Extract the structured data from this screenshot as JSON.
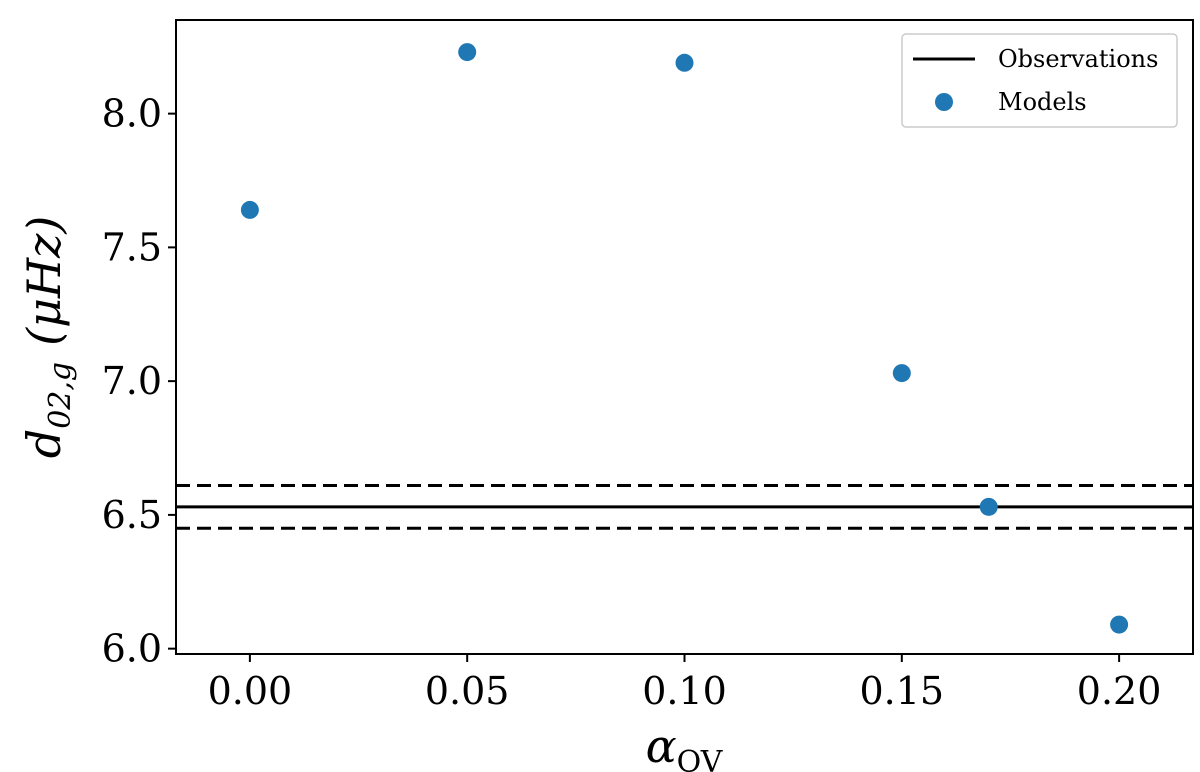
{
  "chart_data": {
    "type": "scatter",
    "xlabel": "α",
    "xlabel_sub": "OV",
    "ylabel": "d",
    "ylabel_sub": "02,g",
    "ylabel_unit": "(μHz)",
    "xlim": [
      -0.017,
      0.217
    ],
    "ylim": [
      5.98,
      8.35
    ],
    "xticks": [
      "0.00",
      "0.05",
      "0.10",
      "0.15",
      "0.20"
    ],
    "xtick_values": [
      0.0,
      0.05,
      0.1,
      0.15,
      0.2
    ],
    "yticks": [
      "6.0",
      "6.5",
      "7.0",
      "7.5",
      "8.0"
    ],
    "ytick_values": [
      6.0,
      6.5,
      7.0,
      7.5,
      8.0
    ],
    "grid": false,
    "legend_position": "top-right",
    "series": [
      {
        "name": "Models",
        "kind": "scatter",
        "color": "#1f77b4",
        "x": [
          0.0,
          0.05,
          0.1,
          0.15,
          0.17,
          0.2
        ],
        "y": [
          7.64,
          8.23,
          8.19,
          7.03,
          6.53,
          6.09
        ]
      },
      {
        "name": "Observations",
        "kind": "hline",
        "color": "#000000",
        "y": 6.53,
        "lower": 6.45,
        "upper": 6.61
      }
    ]
  }
}
